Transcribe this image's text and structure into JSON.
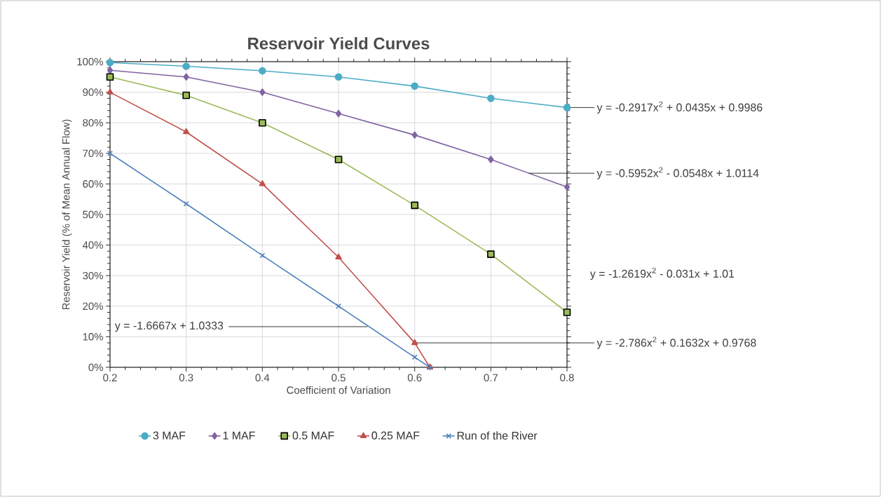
{
  "chart_data": {
    "type": "line",
    "title": "Reservoir Yield Curves",
    "xlabel": "Coefficient of Variation",
    "ylabel": "Reservoir Yield (% of Mean Annual Flow)",
    "xlim": [
      0.2,
      0.8
    ],
    "xticks": [
      0.2,
      0.3,
      0.4,
      0.5,
      0.6,
      0.7,
      0.8
    ],
    "ylim": [
      0,
      100
    ],
    "yticks": [
      {
        "value": 0,
        "label": "0%"
      },
      {
        "value": 10,
        "label": "10%"
      },
      {
        "value": 20,
        "label": "20%"
      },
      {
        "value": 30,
        "label": "30%"
      },
      {
        "value": 40,
        "label": "40%"
      },
      {
        "value": 50,
        "label": "50%"
      },
      {
        "value": 60,
        "label": "60%"
      },
      {
        "value": 70,
        "label": "70%"
      },
      {
        "value": 80,
        "label": "80%"
      },
      {
        "value": 90,
        "label": "90%"
      },
      {
        "value": 100,
        "label": "100%"
      }
    ],
    "grid": true,
    "legend": "bottom",
    "line_style": "solid",
    "series": [
      {
        "name": "3 MAF",
        "color": "#4bacc6",
        "marker": "circle",
        "x": [
          0.2,
          0.3,
          0.4,
          0.5,
          0.6,
          0.7,
          0.8
        ],
        "values": [
          99.7,
          98.5,
          97,
          95,
          92,
          88,
          85
        ]
      },
      {
        "name": "1 MAF",
        "color": "#8064a2",
        "marker": "diamond",
        "x": [
          0.2,
          0.3,
          0.4,
          0.5,
          0.6,
          0.7,
          0.8
        ],
        "values": [
          97.2,
          95,
          90,
          83,
          76,
          68,
          59
        ]
      },
      {
        "name": "0.5 MAF",
        "color": "#9bbb59",
        "marker": "square",
        "x": [
          0.2,
          0.3,
          0.4,
          0.5,
          0.6,
          0.7,
          0.8
        ],
        "values": [
          95,
          89,
          80,
          68,
          53,
          37,
          18
        ]
      },
      {
        "name": "0.25 MAF",
        "color": "#c0504d",
        "marker": "triangle",
        "x": [
          0.2,
          0.3,
          0.4,
          0.5,
          0.6,
          0.62
        ],
        "values": [
          90,
          77,
          60,
          36,
          8,
          0
        ]
      },
      {
        "name": "Run of the River",
        "color": "#4f81bd",
        "marker": "cross",
        "x": [
          0.2,
          0.3,
          0.4,
          0.5,
          0.6,
          0.62
        ],
        "values": [
          70,
          53.5,
          36.6,
          20,
          3.3,
          0
        ]
      }
    ],
    "annotations": [
      {
        "text": "y = -0.2917x$^{2}$ + 0.0435x + 0.9986",
        "x": 0.8,
        "y": 85
      },
      {
        "text": "y = -0.5952x$^{2}$ - 0.0548x + 1.0114",
        "x": 0.75,
        "y": 63.5
      },
      "y = -1.2619x$^{2}$ - 0.031x + 1.01",
      {
        "text": "y = -1.6667x + 1.0333",
        "x": 0.54,
        "y": 13.3
      },
      {
        "text": "y = -2.786x$^{2}$ + 0.1632x + 0.9768",
        "x": 0.6,
        "y": 8
      }
    ]
  }
}
